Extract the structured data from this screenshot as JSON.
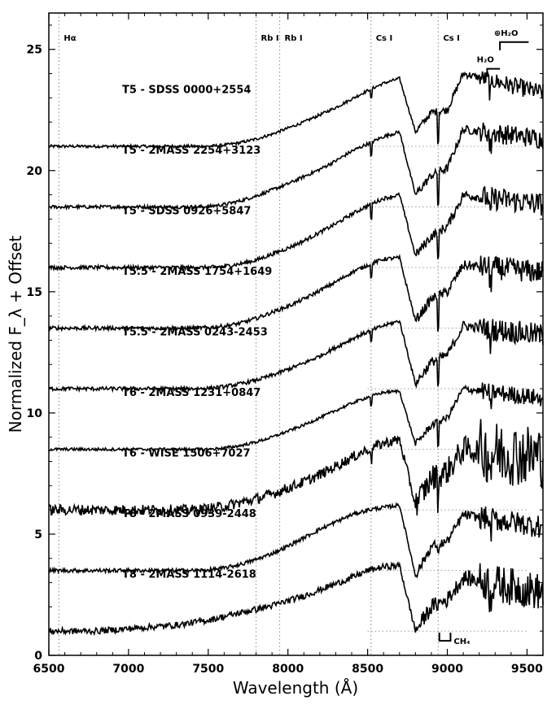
{
  "chart_data": {
    "type": "line",
    "xlabel": "Wavelength (Å)",
    "ylabel": "Normalized F_λ + Offset",
    "xlim": [
      6500,
      9600
    ],
    "ylim": [
      0,
      26.5
    ],
    "x_ticks": [
      6500,
      7000,
      7500,
      8000,
      8500,
      9000,
      9500
    ],
    "y_ticks": [
      0,
      5,
      10,
      15,
      20,
      25
    ],
    "x_step": 5,
    "spectral_lines": [
      {
        "label": "Hα",
        "wavelength": 6563
      },
      {
        "label": "Rb I",
        "wavelength": 7800
      },
      {
        "label": "Rb I",
        "wavelength": 7948
      },
      {
        "label": "Cs I",
        "wavelength": 8521
      },
      {
        "label": "Cs I",
        "wavelength": 8943
      }
    ],
    "band_labels": [
      {
        "label": "⊕H₂O",
        "x_start": 9330,
        "x_end": 9510,
        "y": 25.3
      },
      {
        "label": "H₂O",
        "x_start": 9250,
        "x_end": 9330,
        "y": 24.2
      },
      {
        "label": "CH₄",
        "x_start": 8950,
        "x_end": 9020,
        "y": 0.6
      }
    ],
    "series": [
      {
        "name": "T5 - SDSS 0000+2554",
        "offset": 21.0,
        "flux": [
          0,
          0,
          0,
          0,
          0,
          0,
          0,
          0,
          0,
          0,
          0,
          0.05,
          0.15,
          0.3,
          0.5,
          0.75,
          1.0,
          1.3,
          1.6,
          1.95,
          2.3,
          2.6,
          2.8,
          0.6,
          1.4,
          1.5,
          3.0,
          2.2
        ],
        "noise": 0.06,
        "dips": [
          [
            8521,
            0.4
          ],
          [
            8943,
            1.2
          ],
          [
            9270,
            0.5
          ]
        ]
      },
      {
        "name": "T5 - 2MASS 2254+3123",
        "offset": 18.5,
        "flux": [
          0,
          0,
          0,
          0,
          0,
          0,
          0,
          0,
          0,
          0,
          0.02,
          0.1,
          0.25,
          0.45,
          0.7,
          0.95,
          1.25,
          1.55,
          1.9,
          2.3,
          2.6,
          2.9,
          3.1,
          0.5,
          1.3,
          1.6,
          3.2,
          2.8
        ],
        "noise": 0.07,
        "dips": [
          [
            8521,
            0.6
          ],
          [
            8943,
            1.3
          ],
          [
            9270,
            0.6
          ]
        ]
      },
      {
        "name": "T5 - SDSS 0926+5847",
        "offset": 16.0,
        "flux": [
          0,
          0,
          0,
          0,
          0,
          0,
          0,
          0,
          0,
          0,
          0,
          0.05,
          0.15,
          0.3,
          0.55,
          0.8,
          1.1,
          1.45,
          1.8,
          2.2,
          2.55,
          2.85,
          3.0,
          0.5,
          1.3,
          1.7,
          3.0,
          2.6
        ],
        "noise": 0.08,
        "dips": [
          [
            8521,
            0.6
          ],
          [
            8943,
            1.2
          ],
          [
            9270,
            0.6
          ]
        ]
      },
      {
        "name": "T5.5 - 2MASS 1754+1649",
        "offset": 13.5,
        "flux": [
          0,
          0,
          0,
          0,
          0,
          0,
          0,
          0,
          0,
          0,
          0.02,
          0.08,
          0.2,
          0.4,
          0.65,
          0.9,
          1.2,
          1.55,
          1.9,
          2.3,
          2.6,
          2.85,
          2.9,
          0.3,
          1.2,
          1.5,
          2.6,
          2.3
        ],
        "noise": 0.08,
        "dips": [
          [
            8521,
            0.6
          ],
          [
            8943,
            1.3
          ],
          [
            9270,
            0.6
          ]
        ]
      },
      {
        "name": "T5.5 - 2MASS 0243-2453",
        "offset": 11.0,
        "flux": [
          0,
          0,
          0,
          0,
          0,
          0,
          0,
          0,
          0,
          0,
          0.02,
          0.08,
          0.2,
          0.35,
          0.55,
          0.8,
          1.05,
          1.35,
          1.7,
          2.05,
          2.35,
          2.6,
          2.8,
          0.2,
          1.1,
          1.4,
          2.6,
          2.2
        ],
        "noise": 0.08,
        "dips": [
          [
            8521,
            0.5
          ],
          [
            8943,
            1.1
          ],
          [
            9270,
            0.6
          ]
        ]
      },
      {
        "name": "T6 - 2MASS 1231+0847",
        "offset": 8.5,
        "flux": [
          0,
          0,
          0,
          0,
          0,
          0,
          0,
          0,
          0,
          0,
          0,
          0.05,
          0.15,
          0.3,
          0.5,
          0.75,
          1.0,
          1.3,
          1.6,
          1.9,
          2.15,
          2.35,
          2.4,
          0.2,
          1.0,
          1.3,
          2.5,
          2.1
        ],
        "noise": 0.06,
        "dips": [
          [
            8521,
            0.4
          ],
          [
            8943,
            0.9
          ],
          [
            9270,
            0.6
          ]
        ]
      },
      {
        "name": "T6 - WISE 1506+7027",
        "offset": 6.0,
        "flux": [
          0,
          0,
          0,
          0,
          0,
          0,
          0,
          0,
          0,
          0,
          0.05,
          0.15,
          0.3,
          0.45,
          0.65,
          0.9,
          1.15,
          1.45,
          1.8,
          2.15,
          2.5,
          2.75,
          2.9,
          0.2,
          1.3,
          1.6,
          2.5,
          2.2
        ],
        "noise": 0.22,
        "dips": [
          [
            8521,
            0.5
          ],
          [
            8943,
            1.0
          ],
          [
            9270,
            0.6
          ]
        ]
      },
      {
        "name": "T8 - 2MASS 0939-2448",
        "offset": 3.5,
        "flux": [
          0,
          0,
          0,
          0,
          0,
          0,
          0,
          0,
          0,
          0,
          0.02,
          0.1,
          0.25,
          0.45,
          0.7,
          1.0,
          1.35,
          1.7,
          2.0,
          2.3,
          2.5,
          2.6,
          2.7,
          -0.2,
          1.0,
          1.2,
          2.3,
          1.8
        ],
        "noise": 0.08,
        "dips": [
          [
            8943,
            0.5
          ],
          [
            9270,
            0.5
          ]
        ]
      },
      {
        "name": "T8 - 2MASS 1114-2618",
        "offset": 1.0,
        "flux": [
          0,
          0,
          0,
          0,
          0.05,
          0.1,
          0.15,
          0.2,
          0.25,
          0.35,
          0.45,
          0.6,
          0.75,
          0.9,
          1.05,
          1.25,
          1.45,
          1.7,
          1.95,
          2.2,
          2.5,
          2.65,
          2.7,
          0.0,
          1.0,
          1.3,
          2.2,
          1.6
        ],
        "noise": 0.13,
        "dips": [
          [
            9270,
            0.6
          ]
        ]
      }
    ],
    "flux_grid": [
      6500,
      6600,
      6700,
      6800,
      6900,
      7000,
      7100,
      7200,
      7300,
      7400,
      7500,
      7600,
      7700,
      7800,
      7900,
      8000,
      8100,
      8200,
      8300,
      8400,
      8500,
      8600,
      8700,
      8800,
      8900,
      9000,
      9100,
      9600
    ]
  }
}
